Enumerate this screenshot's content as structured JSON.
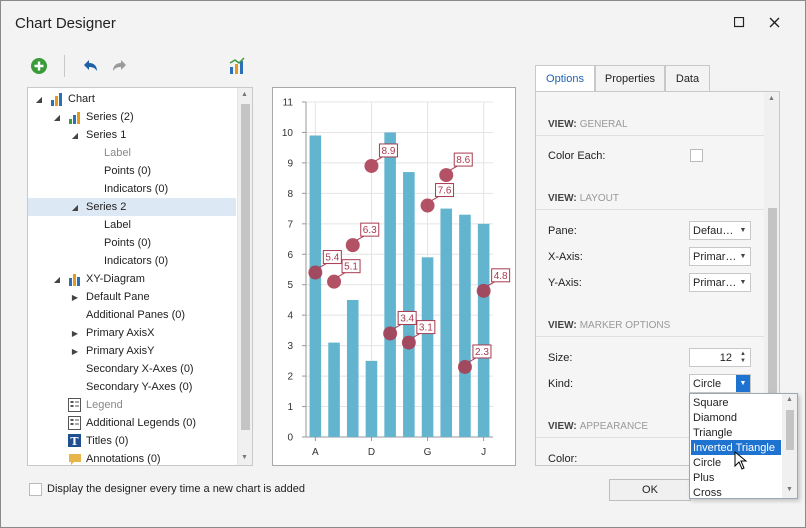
{
  "window": {
    "title": "Chart Designer",
    "maximize_icon": "maximize-icon",
    "close_icon": "close-icon"
  },
  "toolbar": {
    "add_icon": "add-icon",
    "undo_icon": "undo-icon",
    "redo_icon": "redo-icon",
    "chart_wizard_icon": "chart-wizard-icon"
  },
  "tree": {
    "items": [
      {
        "label": "Chart",
        "level": 0,
        "expander": "◢",
        "icon": "chart"
      },
      {
        "label": "Series (2)",
        "level": 1,
        "expander": "◢",
        "icon": "series"
      },
      {
        "label": "Series 1",
        "level": 2,
        "expander": "◢",
        "icon": ""
      },
      {
        "label": "Label",
        "level": 3,
        "expander": "",
        "icon": "",
        "grey": true
      },
      {
        "label": "Points (0)",
        "level": 3,
        "expander": "",
        "icon": ""
      },
      {
        "label": "Indicators (0)",
        "level": 3,
        "expander": "",
        "icon": ""
      },
      {
        "label": "Series 2",
        "level": 2,
        "expander": "◢",
        "icon": "",
        "selected": true
      },
      {
        "label": "Label",
        "level": 3,
        "expander": "",
        "icon": ""
      },
      {
        "label": "Points (0)",
        "level": 3,
        "expander": "",
        "icon": ""
      },
      {
        "label": "Indicators (0)",
        "level": 3,
        "expander": "",
        "icon": ""
      },
      {
        "label": "XY-Diagram",
        "level": 1,
        "expander": "◢",
        "icon": "diagram"
      },
      {
        "label": "Default Pane",
        "level": 2,
        "expander": "▶",
        "icon": ""
      },
      {
        "label": "Additional Panes (0)",
        "level": 2,
        "expander": "",
        "icon": ""
      },
      {
        "label": "Primary AxisX",
        "level": 2,
        "expander": "▶",
        "icon": ""
      },
      {
        "label": "Primary AxisY",
        "level": 2,
        "expander": "▶",
        "icon": ""
      },
      {
        "label": "Secondary X-Axes (0)",
        "level": 2,
        "expander": "",
        "icon": ""
      },
      {
        "label": "Secondary Y-Axes (0)",
        "level": 2,
        "expander": "",
        "icon": ""
      },
      {
        "label": "Legend",
        "level": 1,
        "expander": "",
        "icon": "legend",
        "grey": true
      },
      {
        "label": "Additional Legends (0)",
        "level": 1,
        "expander": "",
        "icon": "legend"
      },
      {
        "label": "Titles (0)",
        "level": 1,
        "expander": "",
        "icon": "titles"
      },
      {
        "label": "Annotations (0)",
        "level": 1,
        "expander": "",
        "icon": "annotations"
      }
    ]
  },
  "chart_data": {
    "type": "bar",
    "ylim": [
      0,
      11
    ],
    "yticks": [
      "0",
      "1",
      "2",
      "3",
      "4",
      "5",
      "6",
      "7",
      "8",
      "9",
      "10",
      "11"
    ],
    "xtick_labels": [
      {
        "index": 0,
        "label": "A"
      },
      {
        "index": 3,
        "label": "D"
      },
      {
        "index": 6,
        "label": "G"
      },
      {
        "index": 9,
        "label": "J"
      }
    ],
    "bar_values": [
      9.9,
      3.1,
      4.5,
      2.5,
      10.0,
      8.7,
      5.9,
      7.5,
      7.3,
      7.0
    ],
    "point_series": [
      {
        "x": 0,
        "y": 5.4,
        "label": "5.4"
      },
      {
        "x": 1,
        "y": 5.1,
        "label": "5.1"
      },
      {
        "x": 2,
        "y": 6.3,
        "label": "6.3"
      },
      {
        "x": 3,
        "y": 8.9,
        "label": "8.9"
      },
      {
        "x": 4,
        "y": 3.4,
        "label": "3.4"
      },
      {
        "x": 5,
        "y": 3.1,
        "label": "3.1"
      },
      {
        "x": 6,
        "y": 7.6,
        "label": "7.6"
      },
      {
        "x": 7,
        "y": 8.6,
        "label": "8.6"
      },
      {
        "x": 8,
        "y": 2.3,
        "label": "2.3"
      },
      {
        "x": 9,
        "y": 4.8,
        "label": "4.8"
      }
    ],
    "bar_color": "#63b5cf",
    "marker_color": "#a83a50",
    "grid": true
  },
  "tabs": [
    {
      "label": "Options",
      "active": true
    },
    {
      "label": "Properties",
      "active": false
    },
    {
      "label": "Data",
      "active": false
    }
  ],
  "props": {
    "general_head": "VIEW:",
    "general_name": "GENERAL",
    "color_each_label": "Color Each:",
    "layout_head": "VIEW:",
    "layout_name": "LAYOUT",
    "pane_label": "Pane:",
    "pane_value": "Defau…",
    "xaxis_label": "X-Axis:",
    "xaxis_value": "Primar…",
    "yaxis_label": "Y-Axis:",
    "yaxis_value": "Primar…",
    "marker_head": "VIEW:",
    "marker_name": "MARKER OPTIONS",
    "size_label": "Size:",
    "size_value": "12",
    "kind_label": "Kind:",
    "kind_value": "Circle",
    "appearance_head": "VIEW:",
    "appearance_name": "APPEARANCE",
    "color_label": "Color:"
  },
  "kind_dropdown": {
    "options": [
      "Square",
      "Diamond",
      "Triangle",
      "Inverted Triangle",
      "Circle",
      "Plus",
      "Cross"
    ],
    "highlighted": "Inverted Triangle"
  },
  "footer": {
    "checkbox_label": "Display the designer every time a new chart is added",
    "ok_label": "OK"
  }
}
